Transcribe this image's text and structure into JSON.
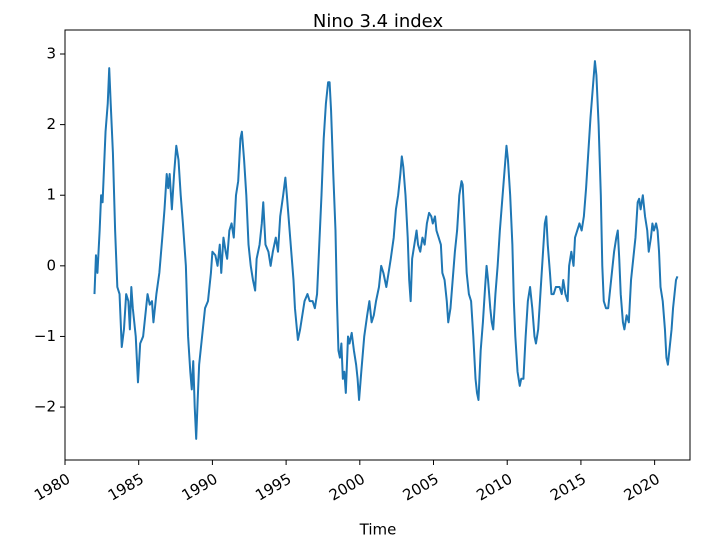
{
  "chart_data": {
    "type": "line",
    "title": "Nino 3.4 index",
    "x_label": "Time",
    "xlim": [
      1980,
      2022.4
    ],
    "xticks": [
      1980,
      1985,
      1990,
      1995,
      2000,
      2005,
      2010,
      2015,
      2020
    ],
    "ylim": [
      -2.75,
      3.34
    ],
    "yticks": [
      {
        "value": -2,
        "label": "−2"
      },
      {
        "value": -1,
        "label": "−1"
      },
      0,
      1,
      2,
      3
    ],
    "grid": false,
    "series": [
      {
        "color": "#1f77b4",
        "x": [
          1982.0,
          1982.1,
          1982.2,
          1982.35,
          1982.45,
          1982.55,
          1982.65,
          1982.75,
          1982.9,
          1983.0,
          1983.1,
          1983.25,
          1983.4,
          1983.55,
          1983.7,
          1983.85,
          1984.0,
          1984.15,
          1984.3,
          1984.4,
          1984.5,
          1984.6,
          1984.8,
          1984.95,
          1985.1,
          1985.3,
          1985.5,
          1985.6,
          1985.75,
          1985.9,
          1986.0,
          1986.2,
          1986.4,
          1986.6,
          1986.75,
          1986.9,
          1987.0,
          1987.1,
          1987.25,
          1987.4,
          1987.55,
          1987.7,
          1987.85,
          1988.0,
          1988.2,
          1988.35,
          1988.5,
          1988.6,
          1988.7,
          1988.8,
          1988.9,
          1989.0,
          1989.1,
          1989.3,
          1989.5,
          1989.7,
          1989.9,
          1990.0,
          1990.2,
          1990.35,
          1990.5,
          1990.6,
          1990.75,
          1990.9,
          1991.0,
          1991.15,
          1991.3,
          1991.45,
          1991.6,
          1991.75,
          1991.9,
          1992.0,
          1992.15,
          1992.3,
          1992.45,
          1992.6,
          1992.75,
          1992.9,
          1993.0,
          1993.2,
          1993.35,
          1993.45,
          1993.6,
          1993.8,
          1993.95,
          1994.1,
          1994.3,
          1994.45,
          1994.6,
          1994.8,
          1994.95,
          1995.05,
          1995.2,
          1995.35,
          1995.5,
          1995.6,
          1995.8,
          1995.95,
          1996.1,
          1996.25,
          1996.45,
          1996.6,
          1996.8,
          1996.95,
          1997.1,
          1997.25,
          1997.4,
          1997.55,
          1997.7,
          1997.85,
          1997.95,
          1998.05,
          1998.2,
          1998.35,
          1998.45,
          1998.55,
          1998.65,
          1998.75,
          1998.85,
          1998.95,
          1999.05,
          1999.2,
          1999.3,
          1999.45,
          1999.6,
          1999.75,
          1999.85,
          1999.95,
          2000.1,
          2000.3,
          2000.5,
          2000.65,
          2000.8,
          2000.95,
          2001.1,
          2001.3,
          2001.45,
          2001.6,
          2001.8,
          2001.95,
          2002.1,
          2002.3,
          2002.45,
          2002.6,
          2002.75,
          2002.85,
          2002.95,
          2003.1,
          2003.25,
          2003.35,
          2003.45,
          2003.55,
          2003.7,
          2003.85,
          2003.95,
          2004.1,
          2004.25,
          2004.4,
          2004.55,
          2004.7,
          2004.85,
          2004.95,
          2005.1,
          2005.2,
          2005.35,
          2005.5,
          2005.6,
          2005.75,
          2005.9,
          2006.0,
          2006.15,
          2006.3,
          2006.45,
          2006.6,
          2006.75,
          2006.9,
          2006.98,
          2007.1,
          2007.25,
          2007.4,
          2007.55,
          2007.7,
          2007.85,
          2007.95,
          2008.05,
          2008.2,
          2008.35,
          2008.5,
          2008.6,
          2008.7,
          2008.85,
          2008.95,
          2009.05,
          2009.2,
          2009.35,
          2009.5,
          2009.65,
          2009.8,
          2009.95,
          2010.05,
          2010.2,
          2010.35,
          2010.45,
          2010.55,
          2010.7,
          2010.85,
          2010.95,
          2011.1,
          2011.25,
          2011.4,
          2011.55,
          2011.7,
          2011.85,
          2011.95,
          2012.1,
          2012.25,
          2012.4,
          2012.55,
          2012.65,
          2012.75,
          2012.9,
          2013.0,
          2013.15,
          2013.3,
          2013.45,
          2013.55,
          2013.7,
          2013.8,
          2013.95,
          2014.1,
          2014.2,
          2014.35,
          2014.5,
          2014.6,
          2014.75,
          2014.9,
          2015.05,
          2015.2,
          2015.35,
          2015.5,
          2015.65,
          2015.8,
          2015.95,
          2016.05,
          2016.2,
          2016.35,
          2016.45,
          2016.55,
          2016.7,
          2016.85,
          2016.95,
          2017.1,
          2017.25,
          2017.4,
          2017.5,
          2017.6,
          2017.7,
          2017.85,
          2017.95,
          2018.1,
          2018.25,
          2018.4,
          2018.55,
          2018.7,
          2018.85,
          2018.95,
          2019.05,
          2019.2,
          2019.35,
          2019.5,
          2019.6,
          2019.75,
          2019.85,
          2019.95,
          2020.1,
          2020.2,
          2020.3,
          2020.4,
          2020.55,
          2020.7,
          2020.8,
          2020.9,
          2021.0,
          2021.15,
          2021.25,
          2021.35,
          2021.45,
          2021.55
        ],
        "values": [
          -0.4,
          0.15,
          -0.1,
          0.5,
          1.0,
          0.9,
          1.4,
          1.9,
          2.3,
          2.8,
          2.3,
          1.6,
          0.5,
          -0.3,
          -0.4,
          -1.15,
          -0.9,
          -0.4,
          -0.5,
          -0.9,
          -0.3,
          -0.6,
          -1.0,
          -1.65,
          -1.1,
          -1.0,
          -0.6,
          -0.4,
          -0.55,
          -0.5,
          -0.8,
          -0.4,
          -0.1,
          0.4,
          0.8,
          1.3,
          1.1,
          1.3,
          0.8,
          1.3,
          1.7,
          1.5,
          1.0,
          0.6,
          0.0,
          -1.0,
          -1.5,
          -1.75,
          -1.35,
          -2.0,
          -2.45,
          -1.9,
          -1.4,
          -1.0,
          -0.6,
          -0.5,
          -0.1,
          0.2,
          0.15,
          0.0,
          0.3,
          -0.1,
          0.4,
          0.2,
          0.1,
          0.5,
          0.6,
          0.4,
          1.0,
          1.2,
          1.8,
          1.9,
          1.5,
          1.0,
          0.3,
          0.0,
          -0.2,
          -0.35,
          0.1,
          0.3,
          0.6,
          0.9,
          0.3,
          0.2,
          0.0,
          0.2,
          0.4,
          0.2,
          0.7,
          1.0,
          1.25,
          1.0,
          0.6,
          0.2,
          -0.2,
          -0.6,
          -1.05,
          -0.9,
          -0.7,
          -0.5,
          -0.4,
          -0.5,
          -0.5,
          -0.6,
          -0.4,
          0.3,
          1.0,
          1.8,
          2.3,
          2.6,
          2.6,
          2.2,
          1.3,
          0.5,
          -0.5,
          -1.2,
          -1.3,
          -1.1,
          -1.6,
          -1.5,
          -1.8,
          -1.0,
          -1.1,
          -0.95,
          -1.2,
          -1.4,
          -1.6,
          -1.9,
          -1.5,
          -1.0,
          -0.7,
          -0.5,
          -0.8,
          -0.7,
          -0.5,
          -0.3,
          0.0,
          -0.1,
          -0.3,
          -0.1,
          0.1,
          0.4,
          0.8,
          1.0,
          1.3,
          1.55,
          1.4,
          1.0,
          0.4,
          -0.2,
          -0.5,
          0.1,
          0.3,
          0.5,
          0.3,
          0.2,
          0.4,
          0.3,
          0.6,
          0.75,
          0.7,
          0.6,
          0.7,
          0.5,
          0.4,
          0.3,
          -0.1,
          -0.2,
          -0.5,
          -0.8,
          -0.6,
          -0.2,
          0.2,
          0.5,
          1.0,
          1.2,
          1.15,
          0.6,
          -0.1,
          -0.4,
          -0.5,
          -1.0,
          -1.6,
          -1.8,
          -1.9,
          -1.2,
          -0.8,
          -0.3,
          0.0,
          -0.2,
          -0.6,
          -0.8,
          -0.9,
          -0.4,
          0.0,
          0.5,
          0.9,
          1.3,
          1.7,
          1.5,
          1.0,
          0.3,
          -0.5,
          -1.0,
          -1.5,
          -1.7,
          -1.6,
          -1.6,
          -1.0,
          -0.5,
          -0.3,
          -0.6,
          -1.0,
          -1.1,
          -0.9,
          -0.4,
          0.1,
          0.6,
          0.7,
          0.3,
          -0.1,
          -0.4,
          -0.4,
          -0.3,
          -0.3,
          -0.3,
          -0.4,
          -0.2,
          -0.4,
          -0.5,
          0.0,
          0.2,
          0.0,
          0.4,
          0.5,
          0.6,
          0.5,
          0.7,
          1.1,
          1.6,
          2.1,
          2.5,
          2.9,
          2.7,
          2.0,
          1.0,
          0.0,
          -0.5,
          -0.6,
          -0.6,
          -0.4,
          -0.1,
          0.2,
          0.4,
          0.5,
          0.1,
          -0.4,
          -0.8,
          -0.9,
          -0.7,
          -0.8,
          -0.2,
          0.1,
          0.4,
          0.9,
          0.95,
          0.8,
          1.0,
          0.7,
          0.5,
          0.2,
          0.4,
          0.6,
          0.5,
          0.6,
          0.5,
          0.2,
          -0.3,
          -0.5,
          -0.9,
          -1.3,
          -1.4,
          -1.2,
          -0.9,
          -0.6,
          -0.4,
          -0.2,
          -0.15
        ]
      }
    ]
  }
}
